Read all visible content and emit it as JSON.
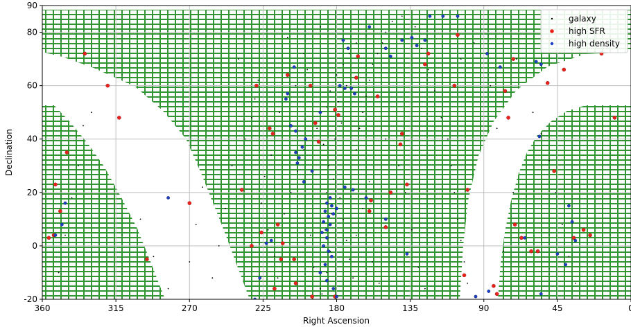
{
  "chart_data": {
    "type": "scatter",
    "xlabel": "Right Ascension",
    "ylabel": "Declination",
    "xlim": [
      360,
      0
    ],
    "ylim": [
      -20,
      90
    ],
    "x_ticks": [
      360,
      315,
      270,
      225,
      180,
      135,
      90,
      45,
      0
    ],
    "y_ticks": [
      -20,
      0,
      20,
      40,
      60,
      80,
      90
    ],
    "grid": true,
    "legend_position": "top-right",
    "colors": {
      "galaxy": "#000000",
      "high_sfr": "#e8231e",
      "high_density": "#1f3fc4",
      "footprint": "#1a8a1a",
      "grid": "#bfbfbf"
    },
    "footprint_regions": [
      {
        "name": "north-cap",
        "dec_min": -20,
        "dec_max": 90
      },
      {
        "name": "south-right",
        "dec_min": -20,
        "dec_max": 52
      },
      {
        "name": "south-left",
        "dec_min": -20,
        "dec_max": 52
      }
    ],
    "series": [
      {
        "name": "galaxy",
        "points": [
          [
            240,
            70
          ],
          [
            230,
            55
          ],
          [
            215,
            50
          ],
          [
            205,
            60
          ],
          [
            198,
            66
          ],
          [
            192,
            44
          ],
          [
            188,
            38
          ],
          [
            185,
            30
          ],
          [
            182,
            25
          ],
          [
            178,
            18
          ],
          [
            176,
            10
          ],
          [
            174,
            2
          ],
          [
            172,
            -5
          ],
          [
            170,
            -12
          ],
          [
            168,
            36
          ],
          [
            166,
            44
          ],
          [
            164,
            50
          ],
          [
            162,
            56
          ],
          [
            160,
            62
          ],
          [
            158,
            68
          ],
          [
            155,
            72
          ],
          [
            152,
            76
          ],
          [
            150,
            80
          ],
          [
            146,
            84
          ],
          [
            140,
            86
          ],
          [
            132,
            82
          ],
          [
            128,
            74
          ],
          [
            124,
            66
          ],
          [
            120,
            58
          ],
          [
            116,
            48
          ],
          [
            112,
            40
          ],
          [
            110,
            30
          ],
          [
            108,
            20
          ],
          [
            106,
            10
          ],
          [
            104,
            2
          ],
          [
            102,
            -6
          ],
          [
            100,
            -14
          ],
          [
            220,
            34
          ],
          [
            224,
            26
          ],
          [
            226,
            16
          ],
          [
            222,
            6
          ],
          [
            218,
            -4
          ],
          [
            216,
            -12
          ],
          [
            212,
            12
          ],
          [
            208,
            20
          ],
          [
            204,
            28
          ],
          [
            200,
            36
          ],
          [
            196,
            4
          ],
          [
            194,
            -8
          ],
          [
            190,
            -16
          ],
          [
            186,
            52
          ],
          [
            184,
            58
          ],
          [
            180,
            64
          ],
          [
            176,
            68
          ],
          [
            172,
            72
          ],
          [
            168,
            76
          ],
          [
            228,
            62
          ],
          [
            232,
            48
          ],
          [
            236,
            40
          ],
          [
            200,
            72
          ],
          [
            210,
            78
          ],
          [
            190,
            82
          ],
          [
            330,
            50
          ],
          [
            335,
            45
          ],
          [
            338,
            30
          ],
          [
            342,
            18
          ],
          [
            346,
            4
          ],
          [
            350,
            -10
          ],
          [
            300,
            10
          ],
          [
            292,
            -4
          ],
          [
            283,
            -16
          ],
          [
            60,
            50
          ],
          [
            55,
            42
          ],
          [
            50,
            32
          ],
          [
            46,
            20
          ],
          [
            42,
            8
          ],
          [
            38,
            -4
          ],
          [
            34,
            -14
          ],
          [
            70,
            70
          ],
          [
            72,
            20
          ],
          [
            78,
            -2
          ],
          [
            82,
            44
          ],
          [
            86,
            60
          ],
          [
            96,
            76
          ],
          [
            104,
            70
          ],
          [
            150,
            40
          ],
          [
            142,
            30
          ],
          [
            138,
            20
          ],
          [
            134,
            6
          ],
          [
            130,
            -8
          ],
          [
            126,
            -16
          ],
          [
            160,
            24
          ],
          [
            164,
            14
          ],
          [
            168,
            4
          ],
          [
            158,
            -6
          ],
          [
            154,
            -14
          ],
          [
            244,
            30
          ],
          [
            248,
            14
          ],
          [
            252,
            0
          ],
          [
            256,
            -12
          ],
          [
            262,
            22
          ],
          [
            266,
            8
          ],
          [
            270,
            -6
          ],
          [
            186,
            20
          ],
          [
            183,
            12
          ],
          [
            187,
            6
          ],
          [
            184,
            -2
          ],
          [
            186,
            -10
          ],
          [
            189,
            -18
          ],
          [
            181,
            40
          ],
          [
            177,
            46
          ],
          [
            179,
            54
          ],
          [
            174,
            60
          ]
        ]
      },
      {
        "name": "high SFR",
        "points": [
          [
            334,
            72
          ],
          [
            320,
            60
          ],
          [
            313,
            48
          ],
          [
            345,
            35
          ],
          [
            352,
            23
          ],
          [
            349,
            13
          ],
          [
            356,
            3
          ],
          [
            353,
            4
          ],
          [
            296,
            -5
          ],
          [
            270,
            16
          ],
          [
            238,
            21
          ],
          [
            229,
            60
          ],
          [
            221,
            44
          ],
          [
            219,
            42
          ],
          [
            226,
            5
          ],
          [
            213,
            1
          ],
          [
            216,
            8
          ],
          [
            206,
            -5
          ],
          [
            210,
            64
          ],
          [
            196,
            60
          ],
          [
            193,
            46
          ],
          [
            191,
            39
          ],
          [
            181,
            51
          ],
          [
            179,
            49
          ],
          [
            167,
            71
          ],
          [
            168,
            63
          ],
          [
            155,
            56
          ],
          [
            140,
            42
          ],
          [
            141,
            38
          ],
          [
            147,
            20
          ],
          [
            150,
            7
          ],
          [
            159,
            17
          ],
          [
            160,
            13
          ],
          [
            137,
            23
          ],
          [
            126,
            68
          ],
          [
            124,
            72
          ],
          [
            108,
            60
          ],
          [
            106,
            79
          ],
          [
            100,
            21
          ],
          [
            102,
            -11
          ],
          [
            77,
            58
          ],
          [
            75,
            48
          ],
          [
            72,
            70
          ],
          [
            71,
            8
          ],
          [
            67,
            3
          ],
          [
            61,
            -2
          ],
          [
            57,
            -2
          ],
          [
            51,
            61
          ],
          [
            47,
            28
          ],
          [
            35,
            3
          ],
          [
            29,
            6
          ],
          [
            25,
            4
          ],
          [
            10,
            48
          ],
          [
            18,
            72
          ],
          [
            41,
            66
          ],
          [
            84,
            -15
          ],
          [
            82,
            -18
          ],
          [
            205,
            -14
          ],
          [
            218,
            -16
          ],
          [
            195,
            -19
          ],
          [
            181,
            -19
          ],
          [
            232,
            0
          ],
          [
            214,
            -5
          ]
        ]
      },
      {
        "name": "high density",
        "points": [
          [
            186,
            16
          ],
          [
            183,
            15
          ],
          [
            187,
            13
          ],
          [
            185,
            11
          ],
          [
            188,
            9
          ],
          [
            184,
            8
          ],
          [
            186,
            6
          ],
          [
            189,
            5
          ],
          [
            182,
            12
          ],
          [
            180,
            14
          ],
          [
            184,
            18
          ],
          [
            186,
            3
          ],
          [
            188,
            0
          ],
          [
            185,
            -2
          ],
          [
            183,
            -4
          ],
          [
            187,
            -7
          ],
          [
            190,
            -10
          ],
          [
            186,
            -13
          ],
          [
            182,
            -16
          ],
          [
            180,
            -19
          ],
          [
            204,
            31
          ],
          [
            203,
            33
          ],
          [
            205,
            35
          ],
          [
            201,
            37
          ],
          [
            199,
            40
          ],
          [
            205,
            43
          ],
          [
            208,
            45
          ],
          [
            211,
            55
          ],
          [
            210,
            57
          ],
          [
            206,
            67
          ],
          [
            178,
            60
          ],
          [
            175,
            59
          ],
          [
            171,
            59
          ],
          [
            169,
            57
          ],
          [
            173,
            74
          ],
          [
            176,
            77
          ],
          [
            160,
            82
          ],
          [
            150,
            74
          ],
          [
            147,
            71
          ],
          [
            140,
            77
          ],
          [
            134,
            78
          ],
          [
            131,
            75
          ],
          [
            126,
            77
          ],
          [
            123,
            86
          ],
          [
            115,
            86
          ],
          [
            106,
            86
          ],
          [
            88,
            72
          ],
          [
            80,
            67
          ],
          [
            55,
            68
          ],
          [
            58,
            69
          ],
          [
            56,
            41
          ],
          [
            38,
            15
          ],
          [
            36,
            9
          ],
          [
            34,
            2
          ],
          [
            40,
            -7
          ],
          [
            45,
            -3
          ],
          [
            55,
            -18
          ],
          [
            65,
            3
          ],
          [
            87,
            -17
          ],
          [
            95,
            -19
          ],
          [
            137,
            -3
          ],
          [
            150,
            10
          ],
          [
            162,
            18
          ],
          [
            170,
            21
          ],
          [
            175,
            22
          ],
          [
            190,
            50
          ],
          [
            195,
            28
          ],
          [
            200,
            24
          ],
          [
            220,
            2
          ],
          [
            223,
            1
          ],
          [
            227,
            -12
          ],
          [
            230,
            -20
          ],
          [
            283,
            18
          ],
          [
            346,
            16
          ],
          [
            348,
            8
          ],
          [
            352,
            4
          ]
        ]
      }
    ]
  }
}
